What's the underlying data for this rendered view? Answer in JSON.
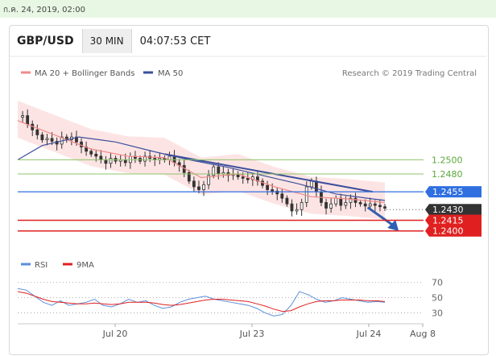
{
  "topbar": {
    "date": "ก.ค. 24, 2019, 02:00"
  },
  "header": {
    "symbol": "GBP/USD",
    "timeframe": "30 MIN",
    "time": "04:07:53 CET"
  },
  "legend": {
    "ma20_label": "MA 20 + Bollinger Bands",
    "ma50_label": "MA 50",
    "source": "Research © 2019 Trading Central",
    "rsi_label": "RSI",
    "ma9_label": "9MA"
  },
  "colors": {
    "ma20": "#f08a8a",
    "ma50": "#3b4f9c",
    "band_fill": "#fde1e1",
    "green_level": "#8cc46a",
    "blue_level": "#2f6fe0",
    "red_level": "#e02020",
    "current": "#333333",
    "rsi": "#5b8fd9",
    "rsi_ma": "#e02020",
    "arrow": "#2f5fb0",
    "trendline": "#3b4f9c"
  },
  "chart_data": [
    {
      "type": "line",
      "title": "GBP/USD",
      "timeframe": "30 MIN",
      "x_ticks": [
        "Jul 20",
        "Jul 23",
        "Jul 24",
        "Aug 8"
      ],
      "ylim": [
        1.2385,
        1.26
      ],
      "levels": [
        {
          "label": "1.2500",
          "value": 1.25,
          "kind": "green"
        },
        {
          "label": "1.2480",
          "value": 1.248,
          "kind": "green"
        },
        {
          "label": "1.2455",
          "value": 1.2455,
          "kind": "blue"
        },
        {
          "label": "1.2430",
          "value": 1.243,
          "kind": "current"
        },
        {
          "label": "1.2415",
          "value": 1.2415,
          "kind": "red"
        },
        {
          "label": "1.2400",
          "value": 1.24,
          "kind": "red"
        }
      ],
      "price_series": [
        {
          "t": 0,
          "c": 1.256
        },
        {
          "t": 4,
          "c": 1.2562
        },
        {
          "t": 8,
          "c": 1.255
        },
        {
          "t": 12,
          "c": 1.2542
        },
        {
          "t": 16,
          "c": 1.2535
        },
        {
          "t": 20,
          "c": 1.2528
        },
        {
          "t": 24,
          "c": 1.253
        },
        {
          "t": 28,
          "c": 1.2526
        },
        {
          "t": 32,
          "c": 1.2522
        },
        {
          "t": 36,
          "c": 1.2532
        },
        {
          "t": 40,
          "c": 1.2528
        },
        {
          "t": 44,
          "c": 1.2532
        },
        {
          "t": 48,
          "c": 1.2525
        },
        {
          "t": 52,
          "c": 1.2518
        },
        {
          "t": 56,
          "c": 1.2512
        },
        {
          "t": 60,
          "c": 1.2508
        },
        {
          "t": 64,
          "c": 1.2505
        },
        {
          "t": 68,
          "c": 1.25
        },
        {
          "t": 72,
          "c": 1.2495
        },
        {
          "t": 76,
          "c": 1.2502
        },
        {
          "t": 80,
          "c": 1.2498
        },
        {
          "t": 84,
          "c": 1.25
        },
        {
          "t": 88,
          "c": 1.2496
        },
        {
          "t": 92,
          "c": 1.2505
        },
        {
          "t": 96,
          "c": 1.2502
        },
        {
          "t": 100,
          "c": 1.2498
        },
        {
          "t": 104,
          "c": 1.2505
        },
        {
          "t": 108,
          "c": 1.2502
        },
        {
          "t": 112,
          "c": 1.25
        },
        {
          "t": 116,
          "c": 1.2502
        },
        {
          "t": 120,
          "c": 1.25
        },
        {
          "t": 124,
          "c": 1.2505
        },
        {
          "t": 128,
          "c": 1.2496
        },
        {
          "t": 132,
          "c": 1.2492
        },
        {
          "t": 136,
          "c": 1.2482
        },
        {
          "t": 140,
          "c": 1.247
        },
        {
          "t": 144,
          "c": 1.2462
        },
        {
          "t": 148,
          "c": 1.2458
        },
        {
          "t": 152,
          "c": 1.2465
        },
        {
          "t": 156,
          "c": 1.2478
        },
        {
          "t": 160,
          "c": 1.249
        },
        {
          "t": 164,
          "c": 1.248
        },
        {
          "t": 168,
          "c": 1.2482
        },
        {
          "t": 172,
          "c": 1.2478
        },
        {
          "t": 176,
          "c": 1.248
        },
        {
          "t": 180,
          "c": 1.2476
        },
        {
          "t": 184,
          "c": 1.2474
        },
        {
          "t": 188,
          "c": 1.2472
        },
        {
          "t": 192,
          "c": 1.2476
        },
        {
          "t": 196,
          "c": 1.247
        },
        {
          "t": 200,
          "c": 1.2464
        },
        {
          "t": 204,
          "c": 1.2458
        },
        {
          "t": 208,
          "c": 1.2456
        },
        {
          "t": 212,
          "c": 1.2452
        },
        {
          "t": 216,
          "c": 1.2446
        },
        {
          "t": 220,
          "c": 1.2438
        },
        {
          "t": 224,
          "c": 1.2428
        },
        {
          "t": 228,
          "c": 1.243
        },
        {
          "t": 232,
          "c": 1.244
        },
        {
          "t": 236,
          "c": 1.2462
        },
        {
          "t": 240,
          "c": 1.247
        },
        {
          "t": 244,
          "c": 1.2455
        },
        {
          "t": 248,
          "c": 1.244
        },
        {
          "t": 252,
          "c": 1.2432
        },
        {
          "t": 256,
          "c": 1.2438
        },
        {
          "t": 260,
          "c": 1.2446
        },
        {
          "t": 264,
          "c": 1.2436
        },
        {
          "t": 268,
          "c": 1.244
        },
        {
          "t": 272,
          "c": 1.2446
        },
        {
          "t": 276,
          "c": 1.244
        },
        {
          "t": 280,
          "c": 1.2438
        },
        {
          "t": 284,
          "c": 1.2435
        },
        {
          "t": 288,
          "c": 1.2438
        },
        {
          "t": 292,
          "c": 1.2436
        },
        {
          "t": 296,
          "c": 1.2434
        },
        {
          "t": 300,
          "c": 1.2432
        }
      ],
      "ma50": [
        {
          "t": 0,
          "v": 1.25
        },
        {
          "t": 20,
          "v": 1.252
        },
        {
          "t": 50,
          "v": 1.2532
        },
        {
          "t": 80,
          "v": 1.2525
        },
        {
          "t": 110,
          "v": 1.2512
        },
        {
          "t": 140,
          "v": 1.25
        },
        {
          "t": 170,
          "v": 1.249
        },
        {
          "t": 200,
          "v": 1.2478
        },
        {
          "t": 230,
          "v": 1.2466
        },
        {
          "t": 260,
          "v": 1.2452
        },
        {
          "t": 290,
          "v": 1.2445
        },
        {
          "t": 300,
          "v": 1.2443
        }
      ],
      "ma20": [
        {
          "t": 0,
          "v": 1.2555
        },
        {
          "t": 30,
          "v": 1.2535
        },
        {
          "t": 60,
          "v": 1.2515
        },
        {
          "t": 90,
          "v": 1.2505
        },
        {
          "t": 120,
          "v": 1.2503
        },
        {
          "t": 150,
          "v": 1.2475
        },
        {
          "t": 180,
          "v": 1.248
        },
        {
          "t": 210,
          "v": 1.2462
        },
        {
          "t": 240,
          "v": 1.2448
        },
        {
          "t": 270,
          "v": 1.2445
        },
        {
          "t": 300,
          "v": 1.244
        }
      ],
      "trendline": [
        {
          "t": 120,
          "v": 1.2508
        },
        {
          "t": 290,
          "v": 1.2455
        }
      ],
      "forecast_arrow": [
        {
          "t": 286,
          "v": 1.2433
        },
        {
          "t": 310,
          "v": 1.2402
        }
      ]
    },
    {
      "type": "line",
      "title": "RSI",
      "y_ticks": [
        70,
        50,
        30
      ],
      "ylim": [
        20,
        75
      ],
      "series": [
        {
          "name": "RSI",
          "values": [
            62,
            60,
            52,
            44,
            40,
            46,
            40,
            42,
            44,
            48,
            40,
            38,
            42,
            48,
            44,
            46,
            40,
            36,
            38,
            44,
            48,
            50,
            52,
            48,
            46,
            44,
            42,
            40,
            36,
            30,
            26,
            28,
            40,
            58,
            54,
            48,
            44,
            46,
            50,
            48,
            46,
            44,
            45,
            44
          ]
        },
        {
          "name": "9MA",
          "values": [
            58,
            56,
            52,
            48,
            45,
            44,
            43,
            42,
            42,
            43,
            42,
            41,
            42,
            44,
            44,
            44,
            43,
            41,
            40,
            41,
            43,
            45,
            47,
            48,
            48,
            47,
            46,
            45,
            42,
            39,
            35,
            32,
            33,
            38,
            42,
            45,
            46,
            46,
            47,
            47,
            47,
            46,
            46,
            45
          ]
        }
      ]
    }
  ]
}
